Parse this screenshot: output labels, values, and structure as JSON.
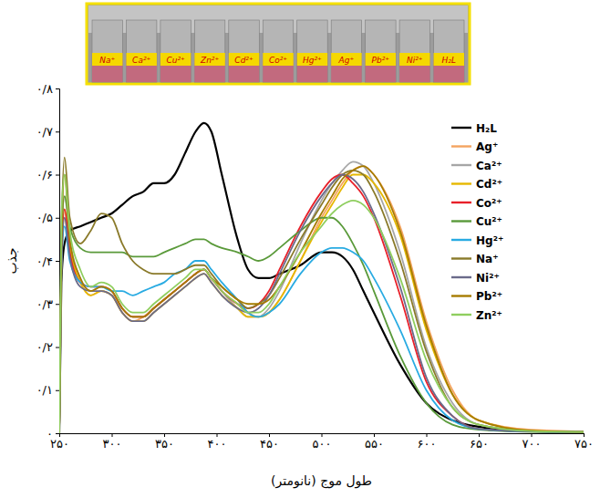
{
  "chart_data": {
    "type": "line",
    "x_label": "طول موج (نانومتر)",
    "y_label": "جذب",
    "annotations": [
      "Na⁺",
      "Ca²⁺",
      "Cu²⁺",
      "Zn²⁺",
      "Cd²⁺",
      "Co²⁺",
      "Hg²⁺",
      "Ag⁺",
      "Pb²⁺",
      "Ni²⁺",
      "H₂L"
    ],
    "x": [
      250,
      252,
      255,
      260,
      270,
      280,
      290,
      300,
      310,
      320,
      330,
      340,
      350,
      360,
      370,
      380,
      388,
      395,
      405,
      420,
      430,
      440,
      450,
      460,
      480,
      500,
      510,
      520,
      530,
      540,
      550,
      575,
      600,
      625,
      650,
      700,
      750
    ],
    "xlim": [
      250,
      750
    ],
    "xticks": [
      {
        "value": 250,
        "label": "۲۵۰"
      },
      {
        "value": 300,
        "label": "۳۰۰"
      },
      {
        "value": 350,
        "label": "۳۵۰"
      },
      {
        "value": 400,
        "label": "۴۰۰"
      },
      {
        "value": 450,
        "label": "۴۵۰"
      },
      {
        "value": 500,
        "label": "۵۰۰"
      },
      {
        "value": 550,
        "label": "۵۵۰"
      },
      {
        "value": 600,
        "label": "۶۰۰"
      },
      {
        "value": 650,
        "label": "۶۵۰"
      },
      {
        "value": 700,
        "label": "۷۰۰"
      },
      {
        "value": 750,
        "label": "۷۵۰"
      }
    ],
    "ylim": [
      0,
      0.8
    ],
    "yticks": [
      {
        "value": 0,
        "label": "۰"
      },
      {
        "value": 0.1,
        "label": "۰/۱"
      },
      {
        "value": 0.2,
        "label": "۰/۲"
      },
      {
        "value": 0.3,
        "label": "۰/۳"
      },
      {
        "value": 0.4,
        "label": "۰/۴"
      },
      {
        "value": 0.5,
        "label": "۰/۵"
      },
      {
        "value": 0.6,
        "label": "۰/۶"
      },
      {
        "value": 0.7,
        "label": "۰/۷"
      },
      {
        "value": 0.8,
        "label": "۰/۸"
      }
    ],
    "grid": false,
    "legend": "right",
    "series": [
      {
        "name": "H₂L",
        "color": "#000000",
        "values": [
          0,
          0.35,
          0.44,
          0.47,
          0.48,
          0.49,
          0.5,
          0.51,
          0.53,
          0.55,
          0.56,
          0.58,
          0.58,
          0.6,
          0.65,
          0.7,
          0.72,
          0.7,
          0.6,
          0.45,
          0.38,
          0.36,
          0.36,
          0.37,
          0.39,
          0.42,
          0.42,
          0.41,
          0.38,
          0.33,
          0.28,
          0.16,
          0.07,
          0.03,
          0.015,
          0.005,
          0.003
        ]
      },
      {
        "name": "Ag⁺",
        "color": "#f4a460",
        "values": [
          0,
          0.38,
          0.5,
          0.42,
          0.35,
          0.32,
          0.33,
          0.32,
          0.28,
          0.26,
          0.27,
          0.29,
          0.31,
          0.33,
          0.35,
          0.37,
          0.38,
          0.36,
          0.33,
          0.3,
          0.28,
          0.27,
          0.28,
          0.31,
          0.4,
          0.5,
          0.54,
          0.58,
          0.61,
          0.62,
          0.6,
          0.48,
          0.26,
          0.1,
          0.03,
          0.008,
          0.004
        ]
      },
      {
        "name": "Ca²⁺",
        "color": "#a6a6a6",
        "values": [
          0,
          0.4,
          0.55,
          0.45,
          0.36,
          0.33,
          0.34,
          0.33,
          0.29,
          0.27,
          0.27,
          0.29,
          0.31,
          0.33,
          0.35,
          0.37,
          0.38,
          0.36,
          0.33,
          0.29,
          0.27,
          0.27,
          0.29,
          0.33,
          0.44,
          0.54,
          0.58,
          0.61,
          0.63,
          0.62,
          0.58,
          0.42,
          0.2,
          0.07,
          0.02,
          0.005,
          0.003
        ]
      },
      {
        "name": "Cd²⁺",
        "color": "#e6b800",
        "values": [
          0,
          0.39,
          0.52,
          0.43,
          0.35,
          0.32,
          0.33,
          0.32,
          0.28,
          0.26,
          0.26,
          0.28,
          0.3,
          0.32,
          0.34,
          0.36,
          0.37,
          0.35,
          0.32,
          0.29,
          0.27,
          0.27,
          0.28,
          0.31,
          0.4,
          0.49,
          0.53,
          0.57,
          0.6,
          0.6,
          0.58,
          0.46,
          0.24,
          0.09,
          0.03,
          0.006,
          0.003
        ]
      },
      {
        "name": "Co²⁺",
        "color": "#e8202a",
        "values": [
          0,
          0.4,
          0.52,
          0.42,
          0.35,
          0.34,
          0.34,
          0.33,
          0.29,
          0.27,
          0.27,
          0.29,
          0.31,
          0.33,
          0.35,
          0.37,
          0.38,
          0.36,
          0.33,
          0.3,
          0.29,
          0.3,
          0.33,
          0.38,
          0.48,
          0.56,
          0.59,
          0.6,
          0.58,
          0.55,
          0.5,
          0.32,
          0.12,
          0.04,
          0.01,
          0.004,
          0.003
        ]
      },
      {
        "name": "Cu²⁺",
        "color": "#5a9a3a",
        "values": [
          0,
          0.45,
          0.55,
          0.48,
          0.43,
          0.42,
          0.42,
          0.42,
          0.42,
          0.41,
          0.41,
          0.41,
          0.42,
          0.43,
          0.44,
          0.45,
          0.45,
          0.44,
          0.43,
          0.42,
          0.41,
          0.4,
          0.41,
          0.43,
          0.47,
          0.5,
          0.5,
          0.48,
          0.44,
          0.39,
          0.33,
          0.18,
          0.07,
          0.02,
          0.008,
          0.003,
          0.002
        ]
      },
      {
        "name": "Hg²⁺",
        "color": "#29abe2",
        "values": [
          0,
          0.38,
          0.48,
          0.4,
          0.35,
          0.34,
          0.34,
          0.33,
          0.33,
          0.32,
          0.33,
          0.34,
          0.35,
          0.37,
          0.38,
          0.4,
          0.4,
          0.38,
          0.35,
          0.31,
          0.28,
          0.27,
          0.28,
          0.3,
          0.37,
          0.42,
          0.43,
          0.43,
          0.42,
          0.4,
          0.36,
          0.24,
          0.1,
          0.03,
          0.01,
          0.004,
          0.003
        ]
      },
      {
        "name": "Na⁺",
        "color": "#8a7a2a",
        "values": [
          0,
          0.45,
          0.64,
          0.5,
          0.44,
          0.47,
          0.51,
          0.5,
          0.44,
          0.4,
          0.38,
          0.37,
          0.37,
          0.37,
          0.38,
          0.39,
          0.39,
          0.37,
          0.34,
          0.31,
          0.29,
          0.3,
          0.32,
          0.36,
          0.45,
          0.53,
          0.57,
          0.6,
          0.61,
          0.6,
          0.56,
          0.4,
          0.19,
          0.06,
          0.02,
          0.005,
          0.003
        ]
      },
      {
        "name": "Ni²⁺",
        "color": "#6b6b8a",
        "values": [
          0,
          0.39,
          0.5,
          0.41,
          0.34,
          0.33,
          0.33,
          0.32,
          0.28,
          0.26,
          0.26,
          0.28,
          0.3,
          0.32,
          0.34,
          0.36,
          0.37,
          0.35,
          0.32,
          0.29,
          0.28,
          0.29,
          0.32,
          0.37,
          0.47,
          0.55,
          0.58,
          0.6,
          0.59,
          0.56,
          0.51,
          0.34,
          0.13,
          0.04,
          0.01,
          0.004,
          0.003
        ]
      },
      {
        "name": "Pb²⁺",
        "color": "#a67c00",
        "values": [
          0,
          0.42,
          0.6,
          0.45,
          0.36,
          0.33,
          0.34,
          0.33,
          0.29,
          0.27,
          0.27,
          0.29,
          0.31,
          0.33,
          0.35,
          0.37,
          0.38,
          0.36,
          0.34,
          0.31,
          0.3,
          0.3,
          0.31,
          0.34,
          0.42,
          0.51,
          0.55,
          0.59,
          0.61,
          0.62,
          0.6,
          0.47,
          0.25,
          0.09,
          0.03,
          0.006,
          0.003
        ]
      },
      {
        "name": "Zn²⁺",
        "color": "#8fce5f",
        "values": [
          0,
          0.5,
          0.6,
          0.47,
          0.38,
          0.34,
          0.35,
          0.34,
          0.3,
          0.28,
          0.28,
          0.3,
          0.32,
          0.34,
          0.36,
          0.38,
          0.38,
          0.36,
          0.33,
          0.3,
          0.28,
          0.28,
          0.3,
          0.34,
          0.42,
          0.48,
          0.51,
          0.53,
          0.54,
          0.53,
          0.5,
          0.36,
          0.17,
          0.06,
          0.02,
          0.005,
          0.003
        ]
      }
    ]
  }
}
